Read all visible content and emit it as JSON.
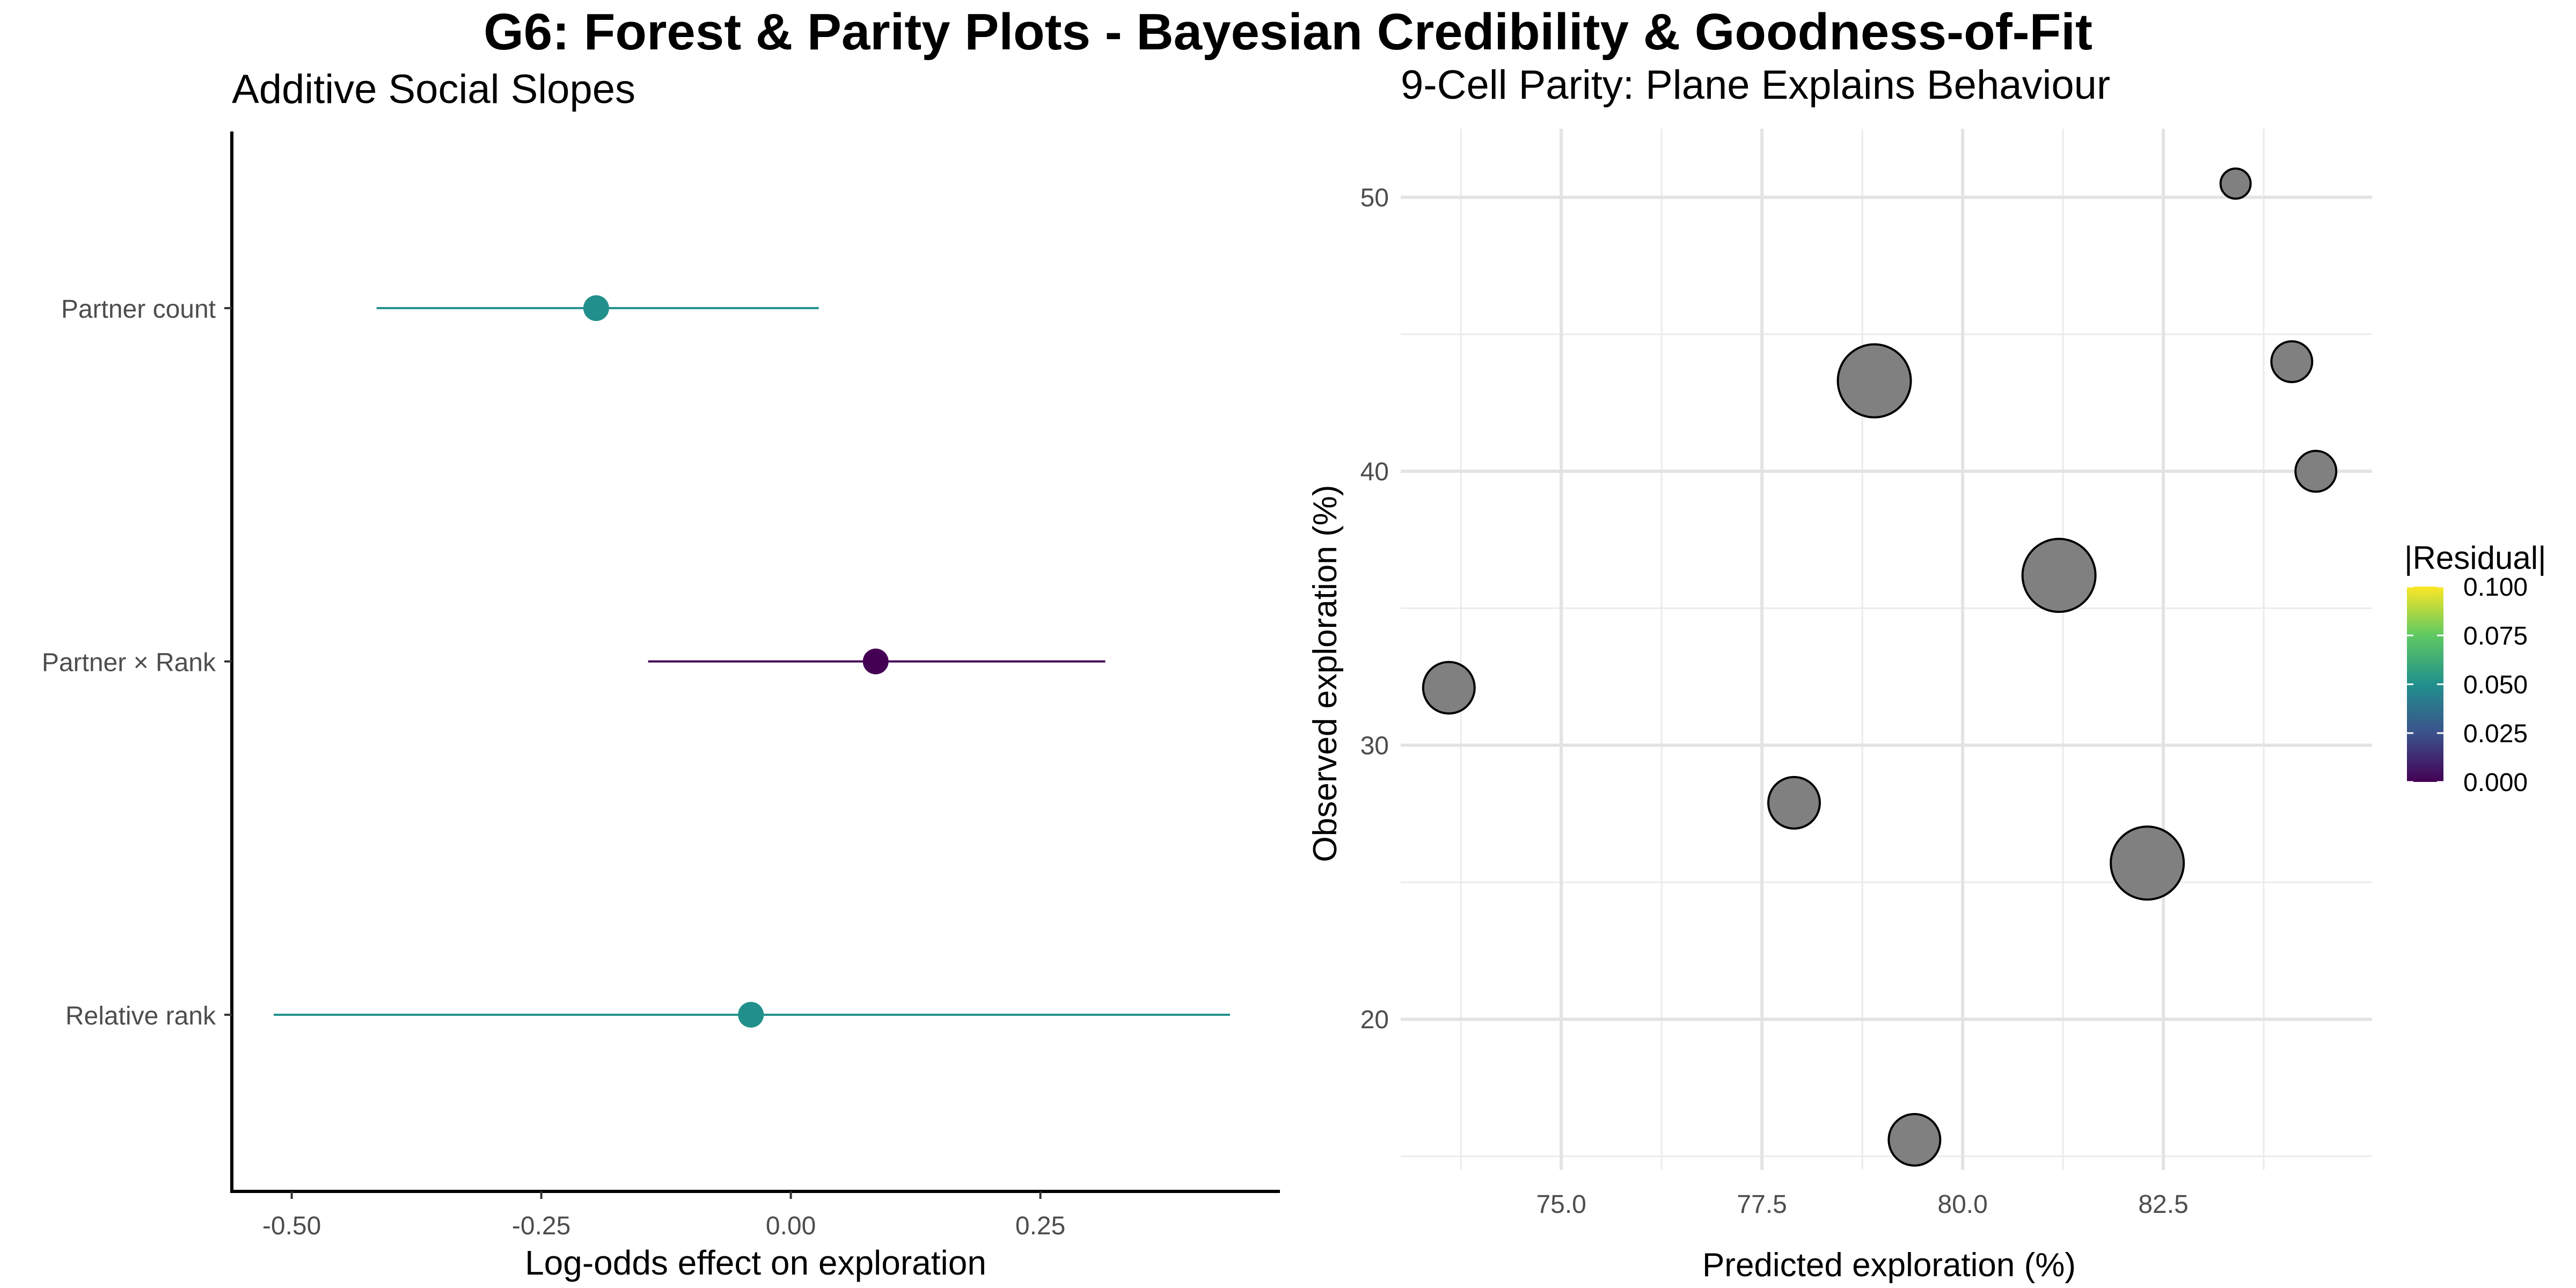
{
  "title": "G6: Forest & Parity Plots - Bayesian Credibility & Goodness-of-Fit",
  "chart_data": [
    {
      "type": "forest",
      "title": "Additive Social Slopes",
      "xlabel": "Log-odds effect on exploration",
      "ylabel": "",
      "xlim": [
        -0.56,
        0.49
      ],
      "xticks": [
        "-0.50",
        "-0.25",
        "0.00",
        "0.25"
      ],
      "grid": false,
      "color_by": "|Residual|",
      "categories": [
        "Partner count",
        "Partner × Rank",
        "Relative rank"
      ],
      "points": [
        {
          "label": "Partner count",
          "estimate": -0.195,
          "lower": -0.415,
          "upper": 0.028,
          "color": "#21908c"
        },
        {
          "label": "Partner × Rank",
          "estimate": 0.085,
          "lower": -0.143,
          "upper": 0.315,
          "color": "#440154"
        },
        {
          "label": "Relative rank",
          "estimate": -0.04,
          "lower": -0.518,
          "upper": 0.44,
          "color": "#21908c"
        }
      ]
    },
    {
      "type": "scatter",
      "title": "9-Cell Parity: Plane Explains Behaviour",
      "xlabel": "Predicted exploration (%)",
      "ylabel": "Observed exploration (%)",
      "xlim": [
        73.0,
        85.1
      ],
      "ylim": [
        14.5,
        52.5
      ],
      "xticks": [
        "75.0",
        "77.5",
        "80.0",
        "82.5"
      ],
      "yticks": [
        "20",
        "30",
        "40",
        "50"
      ],
      "grid": true,
      "point_color": "#808080",
      "points": [
        {
          "x": 83.4,
          "y": 50.5,
          "size": 1
        },
        {
          "x": 78.9,
          "y": 43.3,
          "size": 5
        },
        {
          "x": 84.1,
          "y": 44.0,
          "size": 2
        },
        {
          "x": 84.4,
          "y": 40.0,
          "size": 2
        },
        {
          "x": 81.2,
          "y": 36.2,
          "size": 5
        },
        {
          "x": 73.6,
          "y": 32.1,
          "size": 3
        },
        {
          "x": 77.9,
          "y": 27.9,
          "size": 3
        },
        {
          "x": 82.3,
          "y": 25.7,
          "size": 5
        },
        {
          "x": 79.4,
          "y": 15.6,
          "size": 3
        }
      ],
      "legend": {
        "title": "|Residual|",
        "placement": "right",
        "ticks": [
          "0.100",
          "0.075",
          "0.050",
          "0.025",
          "0.000"
        ],
        "colors": [
          "#fde725",
          "#5ec962",
          "#21908c",
          "#3b528b",
          "#440154"
        ]
      }
    }
  ]
}
